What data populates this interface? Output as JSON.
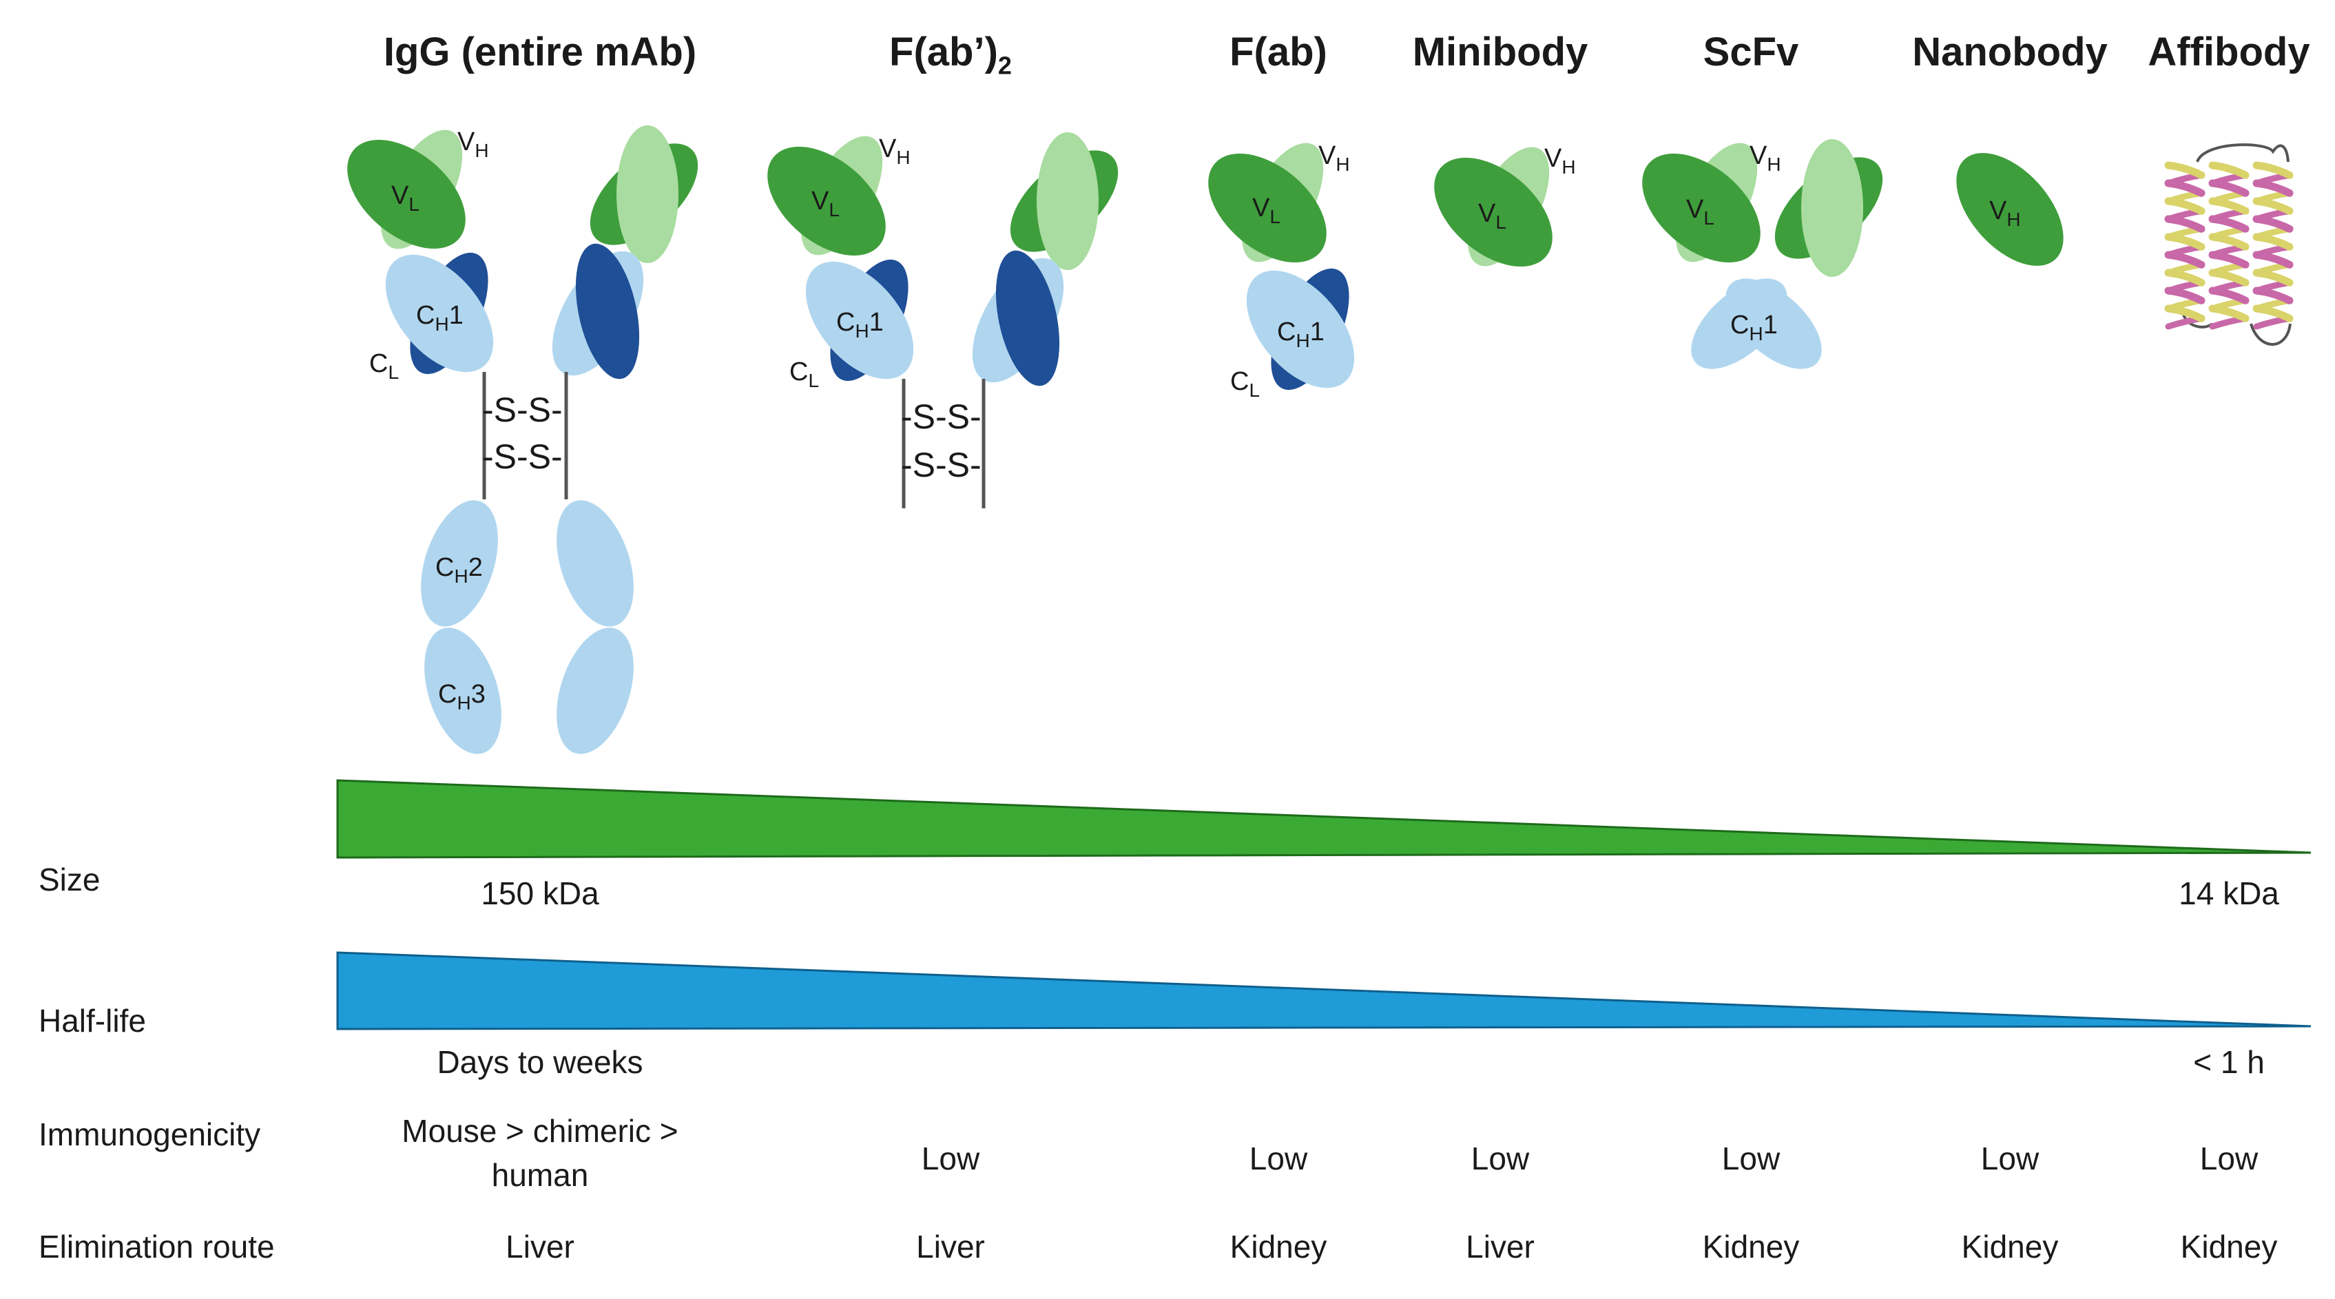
{
  "columns": [
    {
      "key": "igg",
      "name": "IgG (entire mAb)",
      "immunogenicity": "Mouse > chimeric > human",
      "elimination": "Liver"
    },
    {
      "key": "fab2",
      "name": "F(ab’)",
      "name_sub": "2",
      "immunogenicity": "Low",
      "elimination": "Liver"
    },
    {
      "key": "fab",
      "name": "F(ab)",
      "immunogenicity": "Low",
      "elimination": "Kidney"
    },
    {
      "key": "minibody",
      "name": "Minibody",
      "immunogenicity": "Low",
      "elimination": "Liver"
    },
    {
      "key": "scfv",
      "name": "ScFv",
      "immunogenicity": "Low",
      "elimination": "Kidney"
    },
    {
      "key": "nanobody",
      "name": "Nanobody",
      "immunogenicity": "Low",
      "elimination": "Kidney"
    },
    {
      "key": "affibody",
      "name": "Affibody",
      "immunogenicity": "Low",
      "elimination": "Kidney"
    }
  ],
  "row_labels": {
    "size": "Size",
    "half_life": "Half-life",
    "immunogenicity": "Immunogenicity",
    "elimination": "Elimination route"
  },
  "size": {
    "max_label": "150 kDa",
    "min_label": "14 kDa"
  },
  "half_life": {
    "max_label": "Days to weeks",
    "min_label": "< 1 h"
  },
  "domain_labels": {
    "VH": "V",
    "VH_sub": "H",
    "VL": "V",
    "VL_sub": "L",
    "CH1": "C",
    "CH1_sub": "H",
    "CH1_num": "1",
    "CH2": "C",
    "CH2_sub": "H",
    "CH2_num": "2",
    "CH3": "C",
    "CH3_sub": "H",
    "CH3_num": "3",
    "CL": "C",
    "CL_sub": "L",
    "disulfide": "-S-S-"
  },
  "colors": {
    "vh_light": "#a9dca0",
    "vl_dark": "#3f9e3c",
    "ch_light": "#b0d6ef",
    "cl_dark": "#1f4f96",
    "size_bar": "#3aaa35",
    "halflife_bar": "#1f9bd8",
    "helix_yellow": "#d9d36a",
    "helix_pink": "#c968a8"
  }
}
